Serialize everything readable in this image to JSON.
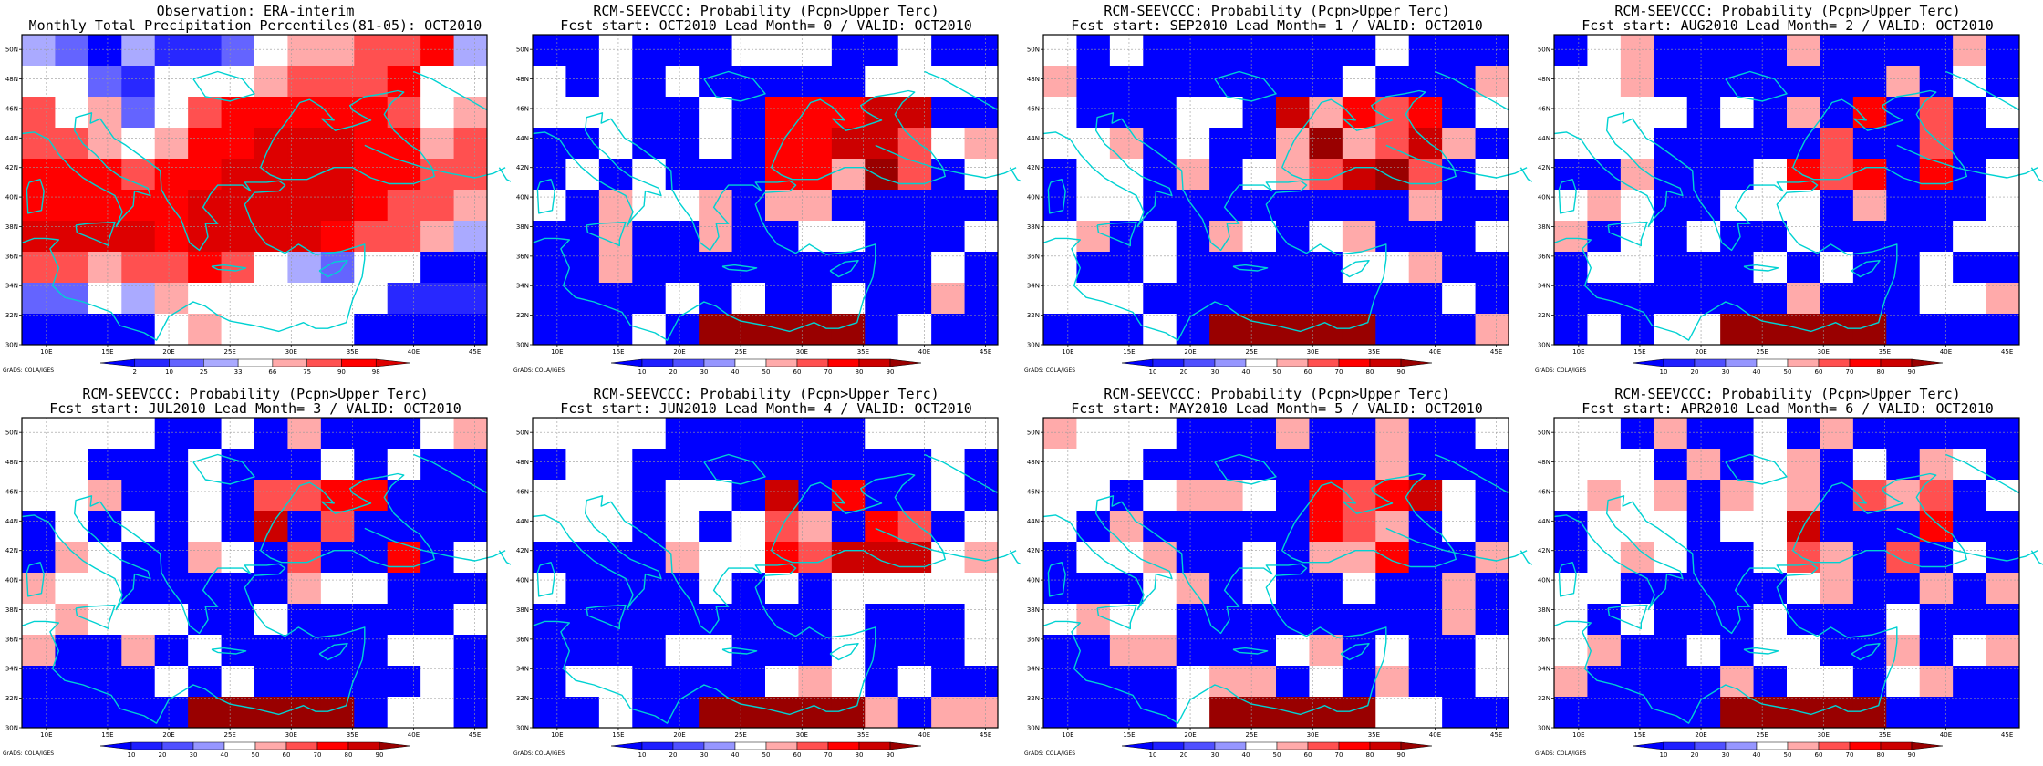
{
  "map_type": "ensemble seasonal forecast precipitation panels",
  "region": {
    "lon_range": [
      8,
      46
    ],
    "lat_range": [
      30,
      51
    ]
  },
  "lon_tick_labels": [
    "10E",
    "15E",
    "20E",
    "25E",
    "30E",
    "35E",
    "40E",
    "45E"
  ],
  "lat_tick_labels": [
    "30N",
    "32N",
    "34N",
    "36N",
    "38N",
    "40N",
    "42N",
    "44N",
    "46N",
    "48N",
    "50N"
  ],
  "credit": "GrADS: COLA/IGES",
  "colors": {
    "obs_scale": [
      "#0000ff",
      "#2828ff",
      "#6464ff",
      "#aaaaff",
      "#ffffff",
      "#ffaaaa",
      "#ff5050",
      "#ff0000",
      "#dd0000"
    ],
    "prob_scale": [
      "#0000ff",
      "#1e1eff",
      "#5050ff",
      "#9696ff",
      "#ffffff",
      "#ffaaaa",
      "#ff5050",
      "#ff0000",
      "#cc0000",
      "#990000"
    ],
    "coast": "#00d2d2"
  },
  "panels": [
    {
      "title1": "Observation: ERA-interim",
      "title2": "Monthly Total Precipitation Percentiles(81-05): OCT2010",
      "colorbar": {
        "labels": [
          "2",
          "10",
          "25",
          "33",
          "66",
          "75",
          "90",
          "98"
        ]
      }
    },
    {
      "title1": "RCM-SEEVCCC: Probability (Pcpn>Upper Terc)",
      "title2": "Fcst start: OCT2010   Lead Month= 0 / VALID: OCT2010",
      "colorbar": {
        "labels": [
          "10",
          "20",
          "30",
          "40",
          "50",
          "60",
          "70",
          "80",
          "90"
        ]
      }
    },
    {
      "title1": "RCM-SEEVCCC: Probability (Pcpn>Upper Terc)",
      "title2": "Fcst start: SEP2010   Lead Month= 1 / VALID: OCT2010",
      "colorbar": {
        "labels": [
          "10",
          "20",
          "30",
          "40",
          "50",
          "60",
          "70",
          "80",
          "90"
        ]
      }
    },
    {
      "title1": "RCM-SEEVCCC: Probability (Pcpn>Upper Terc)",
      "title2": "Fcst start: AUG2010   Lead Month= 2 / VALID: OCT2010",
      "colorbar": {
        "labels": [
          "10",
          "20",
          "30",
          "40",
          "50",
          "60",
          "70",
          "80",
          "90"
        ]
      }
    },
    {
      "title1": "RCM-SEEVCCC: Probability (Pcpn>Upper Terc)",
      "title2": "Fcst start: JUL2010   Lead Month= 3 / VALID: OCT2010",
      "colorbar": {
        "labels": [
          "10",
          "20",
          "30",
          "40",
          "50",
          "60",
          "70",
          "80",
          "90"
        ]
      }
    },
    {
      "title1": "RCM-SEEVCCC: Probability (Pcpn>Upper Terc)",
      "title2": "Fcst start: JUN2010   Lead Month= 4 / VALID: OCT2010",
      "colorbar": {
        "labels": [
          "10",
          "20",
          "30",
          "40",
          "50",
          "60",
          "70",
          "80",
          "90"
        ]
      }
    },
    {
      "title1": "RCM-SEEVCCC: Probability (Pcpn>Upper Terc)",
      "title2": "Fcst start: MAY2010   Lead Month= 5 / VALID: OCT2010",
      "colorbar": {
        "labels": [
          "10",
          "20",
          "30",
          "40",
          "50",
          "60",
          "70",
          "80",
          "90"
        ]
      }
    },
    {
      "title1": "RCM-SEEVCCC: Probability (Pcpn>Upper Terc)",
      "title2": "Fcst start: APR2010   Lead Month= 6 / VALID: OCT2010",
      "colorbar": {
        "labels": [
          "10",
          "20",
          "30",
          "40",
          "50",
          "60",
          "70",
          "80",
          "90"
        ]
      }
    }
  ]
}
